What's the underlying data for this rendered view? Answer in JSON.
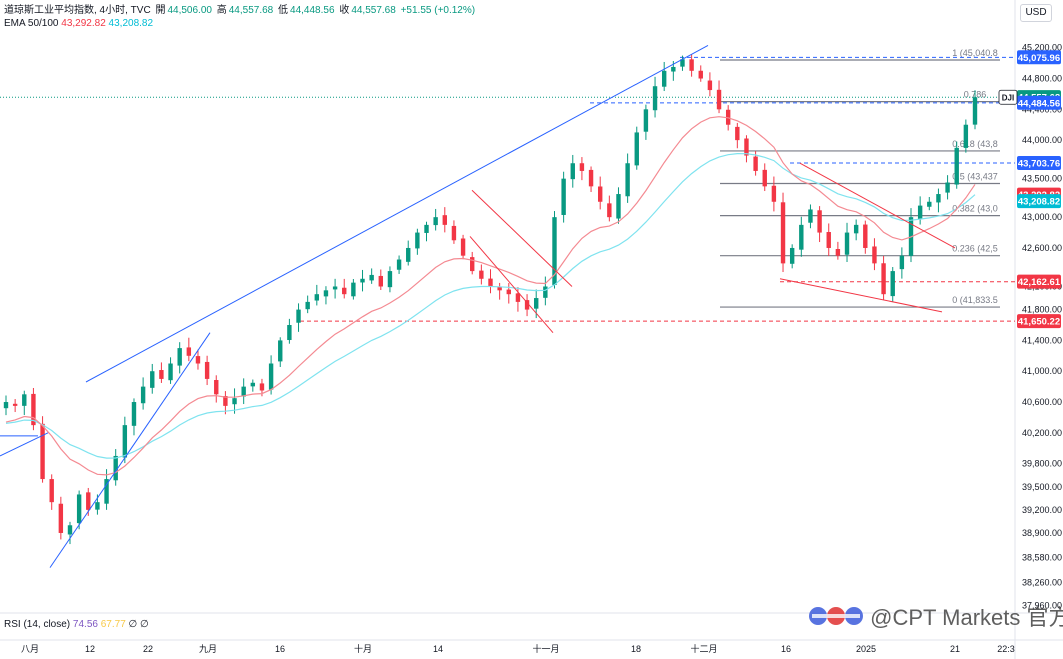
{
  "header": {
    "title": "道琼斯工业平均指数, 4小时, TVC",
    "open_label": "開",
    "open": "44,506.00",
    "high_label": "高",
    "high": "44,557.68",
    "low_label": "低",
    "low": "44,448.56",
    "close_label": "收",
    "close": "44,557.68",
    "change": "+51.55 (+0.12%)"
  },
  "indicators": {
    "ema_label": "EMA 50/100",
    "ema50": "43,292.82",
    "ema100": "43,208.82",
    "rsi_label": "RSI (14, close)",
    "rsi_value": "74.56",
    "rsi_ma": "67.77",
    "rsi_extra1": "∅",
    "rsi_extra2": "∅"
  },
  "currency_button": "USD",
  "watermark": "@CPT Markets 官方",
  "colors": {
    "up": "#089981",
    "down": "#f23645",
    "ema50": "#f23645",
    "ema100": "#00bcd4",
    "trend": "#2962ff",
    "fib": "#787b86",
    "grid": "#f0f3fa"
  },
  "chart_data": {
    "type": "candlestick",
    "symbol": "DJI",
    "timeframe": "4h",
    "yaxis_ticks": [
      "45,200.00",
      "44,800.00",
      "44,400.00",
      "44,000.00",
      "43,500.00",
      "43,000.00",
      "42,600.00",
      "42,100.00",
      "41,800.00",
      "41,400.00",
      "41,000.00",
      "40,600.00",
      "40,200.00",
      "39,800.00",
      "39,500.00",
      "39,200.00",
      "38,900.00",
      "38,580.00",
      "38,260.00",
      "37,960.00"
    ],
    "ylim": [
      37900,
      45300
    ],
    "xaxis_ticks": [
      "八月",
      "12",
      "22",
      "九月",
      "16",
      "十月",
      "14",
      "十一月",
      "18",
      "十二月",
      "16",
      "2025",
      "21",
      "22:3"
    ],
    "price_labels": [
      {
        "value": "45,075.96",
        "type": "blue"
      },
      {
        "value": "44,557.68",
        "type": "green"
      },
      {
        "value": "44,484.56",
        "type": "blue"
      },
      {
        "value": "43,703.76",
        "type": "blue"
      },
      {
        "value": "43,292.82",
        "type": "red"
      },
      {
        "value": "43,208.82",
        "type": "cyan"
      },
      {
        "value": "42,162.61",
        "type": "red"
      },
      {
        "value": "41,650.22",
        "type": "red"
      }
    ],
    "symbol_tag": "DJI",
    "fib_levels": [
      {
        "label": "1 (45,040.8",
        "value": 45040
      },
      {
        "label": "0.786",
        "value": 44500
      },
      {
        "label": "0.618 (43,8",
        "value": 43860
      },
      {
        "label": "0.5 (43,437",
        "value": 43437
      },
      {
        "label": "0.382 (43,0",
        "value": 43020
      },
      {
        "label": "0.236 (42,5",
        "value": 42500
      },
      {
        "label": "0 (41,833.5",
        "value": 41833
      }
    ],
    "close_path": [
      40600,
      40550,
      40700,
      40300,
      39600,
      39300,
      38900,
      39000,
      39400,
      39200,
      39300,
      39600,
      39900,
      40300,
      40600,
      40800,
      41000,
      40900,
      41100,
      41300,
      41200,
      41100,
      40900,
      40700,
      40550,
      40650,
      40800,
      40850,
      40750,
      41100,
      41400,
      41600,
      41800,
      41900,
      42000,
      42050,
      42100,
      42000,
      42150,
      42200,
      42250,
      42100,
      42300,
      42450,
      42600,
      42800,
      42900,
      43000,
      42900,
      42700,
      42500,
      42300,
      42200,
      42100,
      42050,
      42000,
      41900,
      41800,
      41950,
      42100,
      43000,
      43500,
      43700,
      43600,
      43400,
      43200,
      43000,
      43300,
      43700,
      44100,
      44400,
      44700,
      44900,
      44950,
      45050,
      44900,
      44800,
      44650,
      44400,
      44200,
      44000,
      43800,
      43600,
      43400,
      43200,
      42400,
      42600,
      42900,
      43100,
      42800,
      42600,
      42500,
      42800,
      42900,
      42600,
      42400,
      42000,
      42300,
      42500,
      43000,
      43150,
      43200,
      43300,
      43450,
      43900,
      44200,
      44557
    ]
  }
}
